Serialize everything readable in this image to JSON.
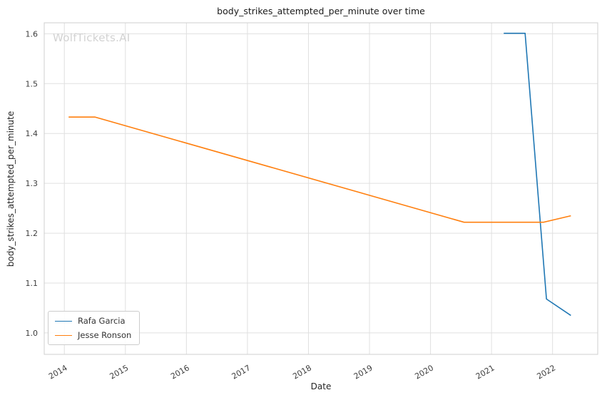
{
  "chart_data": {
    "type": "line",
    "title": "body_strikes_attempted_per_minute over time",
    "xlabel": "Date",
    "ylabel": "body_strikes_attempted_per_minute",
    "watermark": "WolfTickets.AI",
    "xlim": [
      2013.67,
      2022.74
    ],
    "ylim": [
      0.957,
      1.622
    ],
    "xticks": [
      2014,
      2015,
      2016,
      2017,
      2018,
      2019,
      2020,
      2021,
      2022
    ],
    "yticks": [
      1.0,
      1.1,
      1.2,
      1.3,
      1.4,
      1.5,
      1.6
    ],
    "grid": true,
    "legend_position": "lower left",
    "series": [
      {
        "name": "Rafa Garcia",
        "color": "#1f77b4",
        "x": [
          2021.2,
          2021.55,
          2021.9,
          2022.3
        ],
        "y": [
          1.601,
          1.601,
          1.068,
          1.035
        ]
      },
      {
        "name": "Jesse Ronson",
        "color": "#ff7f0e",
        "x": [
          2014.07,
          2014.5,
          2020.55,
          2021.85,
          2022.3
        ],
        "y": [
          1.433,
          1.433,
          1.222,
          1.222,
          1.235
        ]
      }
    ]
  }
}
